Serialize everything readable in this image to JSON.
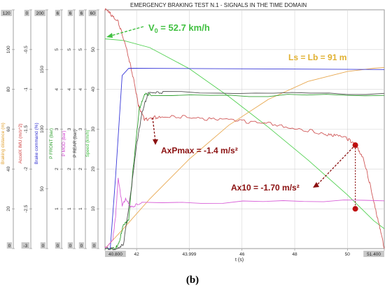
{
  "chart_data": {
    "type": "line",
    "title": "EMERGENCY BRAKING TEST N.1 - SIGNALS IN THE TIME DOMAIN",
    "xlabel": "t (s)",
    "xlim": [
      40.8,
      51.4
    ],
    "x_ticks": [
      "40.800",
      "42",
      "43.999",
      "46",
      "48",
      "50",
      "51.400"
    ],
    "axes": [
      {
        "label": "Braking distance (m)",
        "color": "#e0a030",
        "ticks": [
          "0",
          "20",
          "40",
          "60",
          "80",
          "100",
          "120"
        ]
      },
      {
        "label": "AccelX IMU (m/s^2)",
        "color": "#d04040",
        "ticks": [
          "-3",
          "-2.5",
          "-2",
          "-1.5",
          "-1",
          "-0.5",
          "0"
        ]
      },
      {
        "label": "Brake command (%)",
        "color": "#3030d0",
        "ticks": [
          "0",
          "50",
          "100",
          "150",
          "200"
        ]
      },
      {
        "label": "P FRONT (bar)",
        "color": "#30a030",
        "ticks": [
          "0",
          "1",
          "2",
          "3",
          "4",
          "5",
          "6"
        ]
      },
      {
        "label": "P MOD (bar)",
        "color": "#d040d0",
        "ticks": [
          "0",
          "1",
          "2",
          "3",
          "4",
          "5",
          "6"
        ]
      },
      {
        "label": "P REAR (bar)",
        "color": "#404040",
        "ticks": [
          "0",
          "1",
          "2",
          "3",
          "4",
          "5",
          "6"
        ]
      },
      {
        "label": "Speed (km/h)",
        "color": "#40c040",
        "ticks": [
          "0",
          "10",
          "20",
          "30",
          "40",
          "50",
          "60"
        ]
      }
    ],
    "series": [
      {
        "name": "Speed (km/h)",
        "color": "#50d050",
        "x": [
          40.8,
          41.5,
          42.5,
          44,
          45.5,
          47,
          48.5,
          50,
          51,
          51.4
        ],
        "y": [
          52.7,
          52.3,
          50.5,
          45.2,
          38.2,
          30.5,
          22.3,
          13.5,
          7,
          5
        ]
      },
      {
        "name": "Braking distance (m)",
        "color": "#e8a850",
        "x": [
          40.8,
          41.5,
          42.5,
          44,
          45.5,
          47,
          48.5,
          50,
          51,
          51.4
        ],
        "y": [
          0,
          10,
          25,
          45,
          62,
          75,
          84,
          89,
          90.6,
          91
        ]
      },
      {
        "name": "AccelX IMU (m/s^2)",
        "color": "#d05858",
        "x": [
          40.8,
          41,
          41.3,
          41.6,
          41.9,
          42.1,
          42.3,
          42.6,
          43,
          44,
          45,
          46,
          47,
          48,
          49,
          49.5,
          50,
          50.3,
          50.6,
          50.9,
          51.2,
          51.4
        ],
        "y": [
          0,
          -0.05,
          -0.15,
          -0.45,
          -0.9,
          -1.25,
          -1.38,
          -1.36,
          -1.33,
          -1.35,
          -1.38,
          -1.4,
          -1.43,
          -1.48,
          -1.55,
          -1.58,
          -1.62,
          -1.7,
          -1.85,
          -2.25,
          -2.7,
          -3
        ]
      },
      {
        "name": "Brake command (%)",
        "color": "#3838d8",
        "x": [
          40.8,
          41,
          41.2,
          41.45,
          41.7,
          51.4
        ],
        "y": [
          0,
          0,
          60,
          145,
          151,
          150
        ]
      },
      {
        "name": "P FRONT (bar)",
        "color": "#30a030",
        "x": [
          40.8,
          41.2,
          41.35,
          41.5,
          41.7,
          41.85,
          42.1,
          42.3,
          42.6,
          51.4
        ],
        "y": [
          0,
          0,
          0.2,
          0.6,
          0.7,
          1.9,
          3.5,
          3.9,
          3.85,
          3.85
        ]
      },
      {
        "name": "P REAR (bar)",
        "color": "#505050",
        "x": [
          40.8,
          41.2,
          41.5,
          41.8,
          42,
          42.2,
          42.45,
          43,
          51.4
        ],
        "y": [
          0,
          0,
          0.1,
          1.5,
          2.6,
          3.4,
          3.95,
          3.92,
          3.9
        ]
      },
      {
        "name": "P MOD (bar)",
        "color": "#d860d8",
        "x": [
          40.8,
          41.1,
          41.2,
          41.3,
          41.45,
          41.6,
          41.8,
          42.2,
          51.4
        ],
        "y": [
          0,
          0.25,
          0.8,
          1.75,
          1.1,
          1.25,
          1.05,
          1.15,
          1.2
        ]
      }
    ],
    "annotations": {
      "v0": "V",
      "v0_sub": "0",
      "v0_rest": " = 52.7 km/h",
      "ls": "Ls = Lb = 91 m",
      "axpmax": "AxPmax = -1.4 m/s²",
      "ax10": "Ax10 = -1.70 m/s²"
    },
    "points": [
      {
        "series": "AccelX IMU (m/s^2)",
        "x": 50.3,
        "y": -1.7
      },
      {
        "series": "Speed (km/h)",
        "x": 50.3,
        "y": 10
      }
    ]
  },
  "caption": "(b)"
}
